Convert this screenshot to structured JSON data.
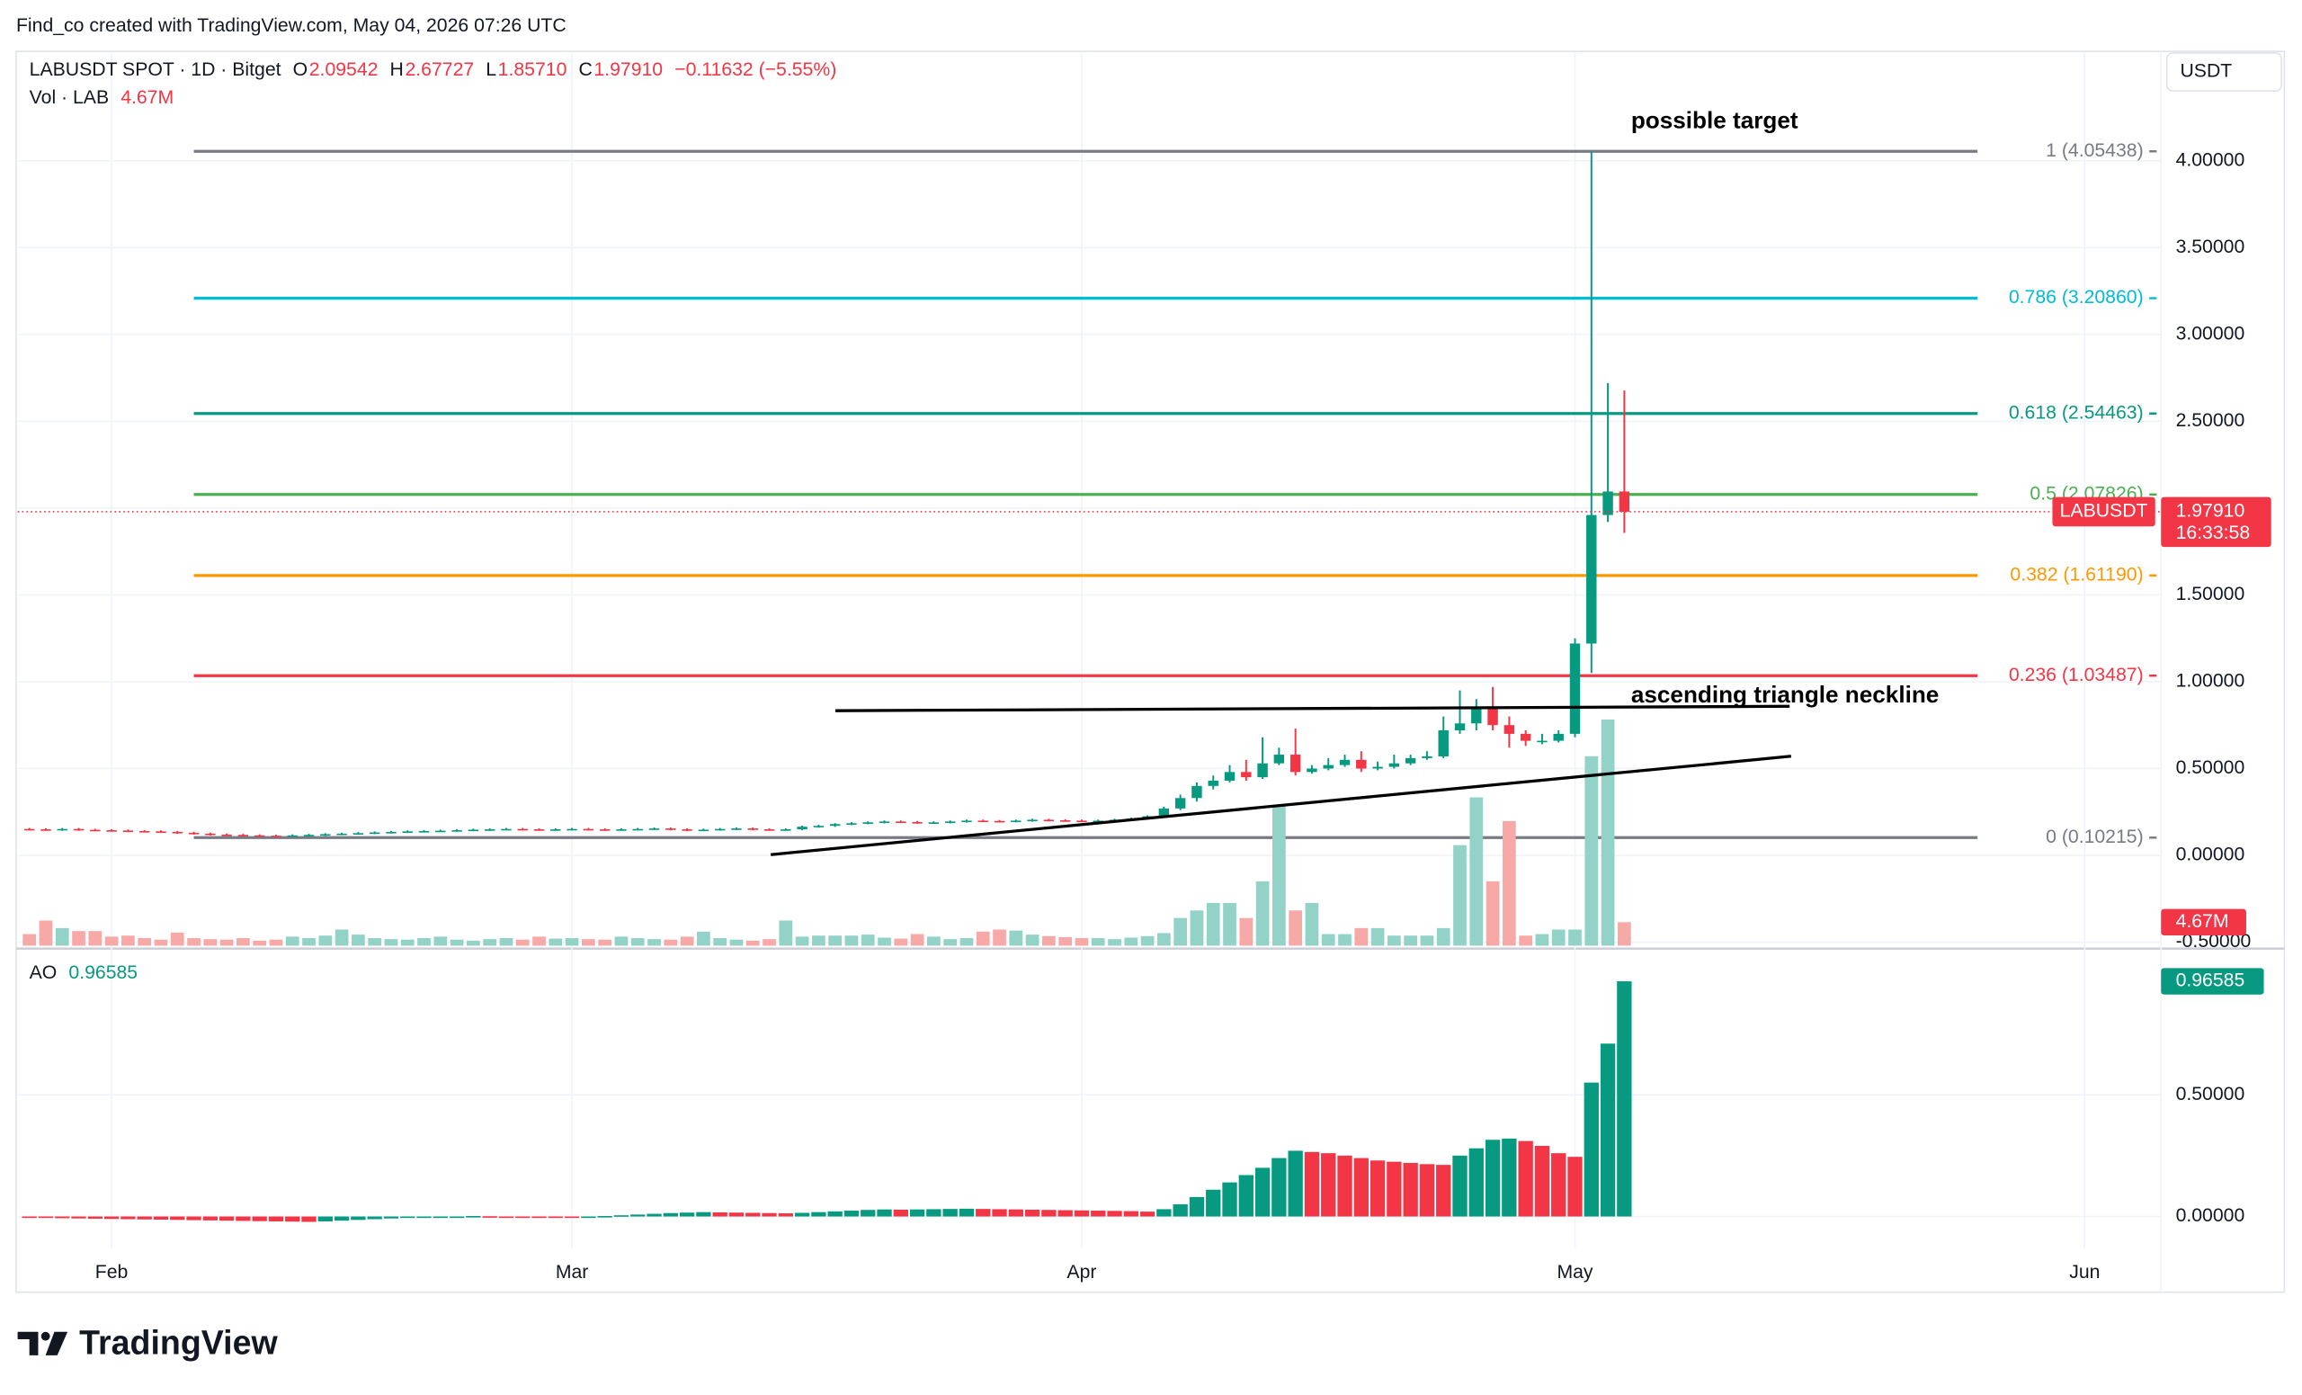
{
  "chart_data": {
    "type": "candlestick",
    "title": "Find_co created with TradingView.com, May 04, 2026 07:26 UTC",
    "legend": {
      "symbol": "LABUSDT SPOT · 1D · Bitget",
      "ohlc": [
        {
          "key": "O",
          "value": "2.09542"
        },
        {
          "key": "H",
          "value": "2.67727"
        },
        {
          "key": "L",
          "value": "1.85710"
        },
        {
          "key": "C",
          "value": "1.97910"
        }
      ],
      "change": "−0.11632 (−5.55%)"
    },
    "y_unit": "USDT",
    "symbol_label": "LABUSDT",
    "last_price_label": "1.97910",
    "countdown": "16:33:58",
    "brand": "TradingView",
    "grid": true,
    "up_color": "#089981",
    "down_color": "#f23645",
    "categories": [
      null,
      null,
      null,
      null,
      null,
      "Feb",
      null,
      null,
      null,
      null,
      null,
      null,
      null,
      null,
      null,
      null,
      null,
      null,
      null,
      null,
      null,
      null,
      null,
      null,
      null,
      null,
      null,
      null,
      null,
      null,
      null,
      null,
      null,
      "Mar",
      null,
      null,
      null,
      null,
      null,
      null,
      null,
      null,
      null,
      null,
      null,
      null,
      null,
      null,
      null,
      null,
      null,
      null,
      null,
      null,
      null,
      null,
      null,
      null,
      null,
      null,
      null,
      null,
      null,
      null,
      "Apr",
      null,
      null,
      null,
      null,
      null,
      null,
      null,
      null,
      null,
      null,
      null,
      null,
      null,
      null,
      null,
      null,
      null,
      null,
      null,
      null,
      null,
      null,
      null,
      null,
      null,
      null,
      null,
      null,
      null,
      "May",
      null,
      null,
      null,
      null,
      null,
      null,
      null,
      null,
      null,
      null,
      null,
      null,
      null,
      null,
      null,
      null,
      null,
      null,
      null,
      null,
      null,
      null,
      null,
      null,
      null,
      null,
      null,
      null,
      null,
      null,
      "Jun",
      null,
      null,
      null,
      null
    ],
    "open": [
      0.152,
      0.15,
      0.148,
      0.152,
      0.147,
      0.145,
      0.143,
      0.14,
      0.138,
      0.135,
      0.13,
      0.125,
      0.12,
      0.118,
      0.115,
      0.113,
      0.112,
      0.115,
      0.118,
      0.122,
      0.125,
      0.128,
      0.132,
      0.135,
      0.138,
      0.14,
      0.142,
      0.145,
      0.148,
      0.15,
      0.152,
      0.15,
      0.148,
      0.15,
      0.152,
      0.15,
      0.148,
      0.15,
      0.152,
      0.155,
      0.15,
      0.145,
      0.148,
      0.152,
      0.155,
      0.15,
      0.148,
      0.15,
      0.165,
      0.17,
      0.18,
      0.185,
      0.19,
      0.195,
      0.192,
      0.188,
      0.19,
      0.195,
      0.2,
      0.198,
      0.196,
      0.2,
      0.205,
      0.202,
      0.2,
      0.198,
      0.2,
      0.205,
      0.212,
      0.225,
      0.27,
      0.33,
      0.4,
      0.43,
      0.48,
      0.45,
      0.53,
      0.58,
      0.48,
      0.5,
      0.52,
      0.55,
      0.5,
      0.51,
      0.53,
      0.56,
      0.57,
      0.72,
      0.76,
      0.85,
      0.75,
      0.7,
      0.66,
      0.66,
      0.7,
      1.22,
      1.96,
      2.09542,
      null,
      null,
      null,
      null,
      null,
      null,
      null,
      null,
      null,
      null,
      null,
      null,
      null,
      null,
      null,
      null,
      null,
      null,
      null,
      null,
      null,
      null,
      null,
      null,
      null,
      null,
      null,
      null,
      null,
      null,
      null,
      null
    ],
    "high": [
      0.158,
      0.156,
      0.158,
      0.158,
      0.153,
      0.151,
      0.149,
      0.146,
      0.144,
      0.141,
      0.136,
      0.131,
      0.126,
      0.124,
      0.121,
      0.119,
      0.121,
      0.124,
      0.128,
      0.131,
      0.134,
      0.138,
      0.141,
      0.144,
      0.146,
      0.148,
      0.151,
      0.154,
      0.156,
      0.158,
      0.158,
      0.156,
      0.156,
      0.158,
      0.158,
      0.156,
      0.156,
      0.158,
      0.161,
      0.161,
      0.156,
      0.154,
      0.158,
      0.161,
      0.161,
      0.156,
      0.156,
      0.171,
      0.176,
      0.186,
      0.191,
      0.196,
      0.201,
      0.201,
      0.198,
      0.196,
      0.201,
      0.206,
      0.206,
      0.204,
      0.206,
      0.211,
      0.211,
      0.208,
      0.206,
      0.206,
      0.211,
      0.218,
      0.231,
      0.28,
      0.35,
      0.42,
      0.46,
      0.52,
      0.55,
      0.68,
      0.62,
      0.73,
      0.52,
      0.56,
      0.58,
      0.6,
      0.54,
      0.58,
      0.58,
      0.6,
      0.8,
      0.95,
      0.9,
      0.97,
      0.8,
      0.72,
      0.7,
      0.72,
      1.25,
      4.05438,
      2.72,
      2.67727,
      null,
      null,
      null,
      null,
      null,
      null,
      null,
      null,
      null,
      null,
      null,
      null,
      null,
      null,
      null,
      null,
      null,
      null,
      null,
      null,
      null,
      null,
      null,
      null,
      null,
      null,
      null,
      null,
      null,
      null,
      null,
      null
    ],
    "low": [
      0.144,
      0.142,
      0.142,
      0.141,
      0.139,
      0.137,
      0.134,
      0.132,
      0.129,
      0.124,
      0.119,
      0.114,
      0.112,
      0.109,
      0.107,
      0.106,
      0.106,
      0.109,
      0.112,
      0.116,
      0.119,
      0.122,
      0.126,
      0.129,
      0.132,
      0.134,
      0.136,
      0.139,
      0.142,
      0.144,
      0.144,
      0.142,
      0.142,
      0.144,
      0.144,
      0.142,
      0.142,
      0.144,
      0.146,
      0.144,
      0.139,
      0.139,
      0.142,
      0.146,
      0.144,
      0.142,
      0.142,
      0.144,
      0.159,
      0.164,
      0.174,
      0.179,
      0.184,
      0.186,
      0.182,
      0.182,
      0.184,
      0.189,
      0.192,
      0.19,
      0.19,
      0.194,
      0.196,
      0.194,
      0.192,
      0.192,
      0.194,
      0.199,
      0.206,
      0.22,
      0.26,
      0.31,
      0.38,
      0.42,
      0.43,
      0.44,
      0.52,
      0.46,
      0.47,
      0.49,
      0.51,
      0.48,
      0.49,
      0.5,
      0.52,
      0.55,
      0.56,
      0.7,
      0.72,
      0.72,
      0.62,
      0.63,
      0.64,
      0.65,
      0.68,
      1.05,
      1.92,
      1.8571,
      null,
      null,
      null,
      null,
      null,
      null,
      null,
      null,
      null,
      null,
      null,
      null,
      null,
      null,
      null,
      null,
      null,
      null,
      null,
      null,
      null,
      null,
      null,
      null,
      null,
      null,
      null,
      null,
      null,
      null,
      null,
      null
    ],
    "close": [
      0.15,
      0.148,
      0.152,
      0.147,
      0.145,
      0.143,
      0.14,
      0.138,
      0.135,
      0.13,
      0.125,
      0.12,
      0.118,
      0.115,
      0.113,
      0.112,
      0.115,
      0.118,
      0.122,
      0.125,
      0.128,
      0.132,
      0.135,
      0.138,
      0.14,
      0.142,
      0.145,
      0.148,
      0.15,
      0.152,
      0.15,
      0.148,
      0.15,
      0.152,
      0.15,
      0.148,
      0.15,
      0.152,
      0.155,
      0.15,
      0.145,
      0.148,
      0.152,
      0.155,
      0.15,
      0.148,
      0.15,
      0.165,
      0.17,
      0.18,
      0.185,
      0.19,
      0.195,
      0.192,
      0.188,
      0.19,
      0.195,
      0.2,
      0.198,
      0.196,
      0.2,
      0.205,
      0.202,
      0.2,
      0.198,
      0.2,
      0.205,
      0.212,
      0.225,
      0.27,
      0.33,
      0.4,
      0.43,
      0.48,
      0.45,
      0.53,
      0.58,
      0.48,
      0.5,
      0.52,
      0.55,
      0.5,
      0.51,
      0.53,
      0.56,
      0.57,
      0.72,
      0.76,
      0.85,
      0.75,
      0.7,
      0.66,
      0.66,
      0.7,
      1.22,
      1.96,
      2.09542,
      1.9791,
      null,
      null,
      null,
      null,
      null,
      null,
      null,
      null,
      null,
      null,
      null,
      null,
      null,
      null,
      null,
      null,
      null,
      null,
      null,
      null,
      null,
      null,
      null,
      null,
      null,
      null,
      null,
      null,
      null,
      null,
      null,
      null
    ],
    "ylim": [
      -0.52,
      4.63
    ],
    "yticks": [
      {
        "value": -0.5,
        "label": "-0.50000"
      },
      {
        "value": 0,
        "label": "0.00000"
      },
      {
        "value": 0.5,
        "label": "0.50000"
      },
      {
        "value": 1,
        "label": "1.00000"
      },
      {
        "value": 1.5,
        "label": "1.50000"
      },
      {
        "value": 2,
        "label": "2.00000"
      },
      {
        "value": 2.5,
        "label": "2.50000"
      },
      {
        "value": 3,
        "label": "3.00000"
      },
      {
        "value": 3.5,
        "label": "3.50000"
      },
      {
        "value": 4,
        "label": "4.00000"
      }
    ],
    "fib_levels": [
      {
        "value": 4.05438,
        "label": "1 (4.05438)",
        "color": "#787b86"
      },
      {
        "value": 3.2086,
        "label": "0.786 (3.20860)",
        "color": "#00bcd4"
      },
      {
        "value": 2.54463,
        "label": "0.618 (2.54463)",
        "color": "#089981"
      },
      {
        "value": 2.07826,
        "label": "0.5 (2.07826)",
        "color": "#4caf50"
      },
      {
        "value": 1.6119,
        "label": "0.382 (1.61190)",
        "color": "#ff9800"
      },
      {
        "value": 1.03487,
        "label": "0.236 (1.03487)",
        "color": "#f23645"
      },
      {
        "value": 0.10215,
        "label": "0 (0.10215)",
        "color": "#787b86"
      }
    ],
    "annotations": [
      "possible target",
      "ascending triangle neckline"
    ],
    "volume": {
      "name": "Vol · LAB",
      "value_label": "4.67M",
      "up_color": "#92d2c7",
      "down_color": "#f7a9a7",
      "values": [
        2.3,
        5.0,
        3.5,
        2.9,
        2.9,
        1.8,
        2.0,
        1.5,
        1.2,
        2.6,
        1.5,
        1.3,
        1.2,
        1.5,
        1.0,
        1.2,
        1.8,
        1.5,
        2.0,
        3.2,
        2.2,
        1.5,
        1.3,
        1.2,
        1.5,
        1.8,
        1.2,
        1.0,
        1.3,
        1.5,
        1.2,
        1.8,
        1.4,
        1.5,
        1.3,
        1.2,
        1.8,
        1.5,
        1.3,
        1.2,
        1.8,
        2.8,
        1.5,
        1.2,
        1.0,
        1.3,
        5.0,
        1.8,
        2.0,
        2.0,
        2.0,
        2.2,
        1.6,
        1.4,
        2.3,
        1.8,
        1.3,
        1.5,
        2.8,
        3.2,
        3.0,
        2.2,
        1.9,
        1.7,
        1.5,
        1.5,
        1.3,
        1.6,
        1.9,
        2.5,
        5.5,
        7.0,
        8.5,
        8.5,
        5.5,
        12.8,
        28.0,
        7.0,
        8.5,
        2.3,
        2.3,
        3.5,
        3.5,
        2.0,
        2.0,
        2.0,
        3.5,
        20.0,
        29.5,
        12.8,
        24.8,
        2.0,
        2.3,
        3.2,
        3.2,
        37.7,
        45.0,
        4.67,
        null,
        null,
        null,
        null,
        null,
        null,
        null,
        null,
        null,
        null,
        null,
        null,
        null,
        null,
        null,
        null,
        null,
        null,
        null,
        null,
        null,
        null,
        null,
        null,
        null,
        null,
        null,
        null,
        null,
        null,
        null,
        null
      ]
    },
    "ao": {
      "name": "AO",
      "value_label": "0.96585",
      "up_color": "#089981",
      "down_color": "#f23645",
      "ylim": [
        -0.13,
        1.07
      ],
      "yticks": [
        {
          "value": 0,
          "label": "0.00000"
        },
        {
          "value": 0.5,
          "label": "0.50000"
        }
      ],
      "values": [
        -0.005,
        -0.006,
        -0.007,
        -0.008,
        -0.009,
        -0.01,
        -0.011,
        -0.012,
        -0.013,
        -0.014,
        -0.015,
        -0.016,
        -0.017,
        -0.018,
        -0.019,
        -0.02,
        -0.021,
        -0.022,
        -0.02,
        -0.017,
        -0.014,
        -0.011,
        -0.008,
        -0.006,
        -0.004,
        -0.002,
        0.0,
        0.002,
        0.001,
        0.0,
        -0.001,
        -0.002,
        -0.003,
        -0.004,
        -0.001,
        0.002,
        0.005,
        0.008,
        0.011,
        0.014,
        0.016,
        0.018,
        0.017,
        0.016,
        0.015,
        0.014,
        0.013,
        0.015,
        0.018,
        0.021,
        0.024,
        0.027,
        0.029,
        0.028,
        0.029,
        0.03,
        0.031,
        0.032,
        0.031,
        0.03,
        0.029,
        0.028,
        0.027,
        0.026,
        0.025,
        0.024,
        0.023,
        0.022,
        0.02,
        0.03,
        0.05,
        0.08,
        0.11,
        0.14,
        0.17,
        0.2,
        0.24,
        0.27,
        0.265,
        0.26,
        0.25,
        0.24,
        0.23,
        0.225,
        0.22,
        0.215,
        0.212,
        0.25,
        0.28,
        0.315,
        0.32,
        0.31,
        0.29,
        0.26,
        0.245,
        0.55,
        0.71,
        0.96585,
        null,
        null,
        null,
        null,
        null,
        null,
        null,
        null,
        null,
        null,
        null,
        null,
        null,
        null,
        null,
        null,
        null,
        null,
        null,
        null,
        null,
        null,
        null,
        null,
        null,
        null,
        null,
        null,
        null,
        null,
        null,
        null
      ]
    }
  }
}
